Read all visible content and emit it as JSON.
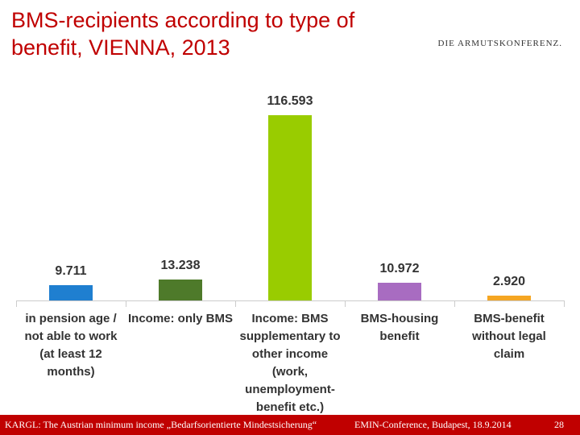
{
  "chart_data": {
    "type": "bar",
    "title": "BMS-recipients according to type of benefit, VIENNA, 2013",
    "categories": [
      "in pension age / not able to work (at least 12 months)",
      "Income: only BMS",
      "Income: BMS supplementary to other income (work, unemployment-benefit etc.)",
      "BMS-housing benefit",
      "BMS-benefit without legal claim"
    ],
    "values": [
      9711,
      13238,
      116593,
      10972,
      2920
    ],
    "value_labels": [
      "9.711",
      "13.238",
      "116.593",
      "10.972",
      "2.920"
    ],
    "colors": [
      "#1f7fd0",
      "#4e7a2a",
      "#99cc00",
      "#a86cc1",
      "#f5a623"
    ]
  },
  "logo": "DIE ARMUTSKONFERENZ.",
  "footer": {
    "left": "KARGL: The Austrian minimum income „Bedarfsorientierte Mindestsicherung“",
    "center": "EMIN-Conference, Budapest, 18.9.2014",
    "page": "28"
  }
}
